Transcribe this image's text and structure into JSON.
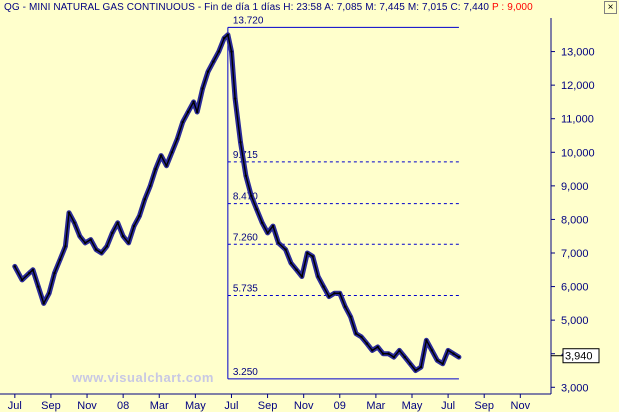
{
  "window": {
    "title": "QG - MINI NATURAL GAS CONTINUOUS - Fin de día 1 días",
    "ohlc": {
      "h_label": "H:",
      "h_value": "23:58",
      "a_label": "A:",
      "a_value": "7,085",
      "m_label": "M:",
      "m_value": "7,445",
      "m2_label": "M:",
      "m2_value": "7,015",
      "c_label": "C:",
      "c_value": "7,440",
      "p_label": "P :",
      "p_value": "9,000"
    },
    "close_label": "×"
  },
  "watermark": "www.visualchart.com",
  "colors": {
    "background": "#ffffcc",
    "axis_text": "#000080",
    "price_line": "#000000",
    "price_fill": "#2b2b99",
    "fib_line": "#0000cc"
  },
  "chart_data": {
    "type": "line",
    "title": "",
    "xlabel": "",
    "ylabel": "",
    "ylim": [
      2.8,
      14.0
    ],
    "grid": false,
    "y_ticks": [
      "13,000",
      "12,000",
      "11,000",
      "10,000",
      "9,000",
      "8,000",
      "7,000",
      "6,000",
      "5,000",
      "4,000",
      "3,000"
    ],
    "y_tick_values": [
      13,
      12,
      11,
      10,
      9,
      8,
      7,
      6,
      5,
      4,
      3
    ],
    "x_ticks": [
      "Jul",
      "Sep",
      "Nov",
      "08",
      "Mar",
      "May",
      "Jul",
      "Sep",
      "Nov",
      "09",
      "Mar",
      "May",
      "Jul",
      "Sep",
      "Nov"
    ],
    "x_tick_index": [
      0,
      2,
      4,
      6,
      8,
      10,
      12,
      14,
      16,
      18,
      20,
      22,
      24,
      26,
      28
    ],
    "x_range_months": [
      -0.6,
      29.7
    ],
    "last_value_label": "3,940",
    "last_value": 3.94,
    "series": [
      {
        "points": [
          [
            0.0,
            6.6
          ],
          [
            0.4,
            6.2
          ],
          [
            0.8,
            6.4
          ],
          [
            1.0,
            6.5
          ],
          [
            1.3,
            6.0
          ],
          [
            1.6,
            5.5
          ],
          [
            1.9,
            5.8
          ],
          [
            2.2,
            6.4
          ],
          [
            2.5,
            6.8
          ],
          [
            2.8,
            7.2
          ],
          [
            3.0,
            8.2
          ],
          [
            3.3,
            7.9
          ],
          [
            3.6,
            7.5
          ],
          [
            3.9,
            7.3
          ],
          [
            4.2,
            7.4
          ],
          [
            4.5,
            7.1
          ],
          [
            4.8,
            7.0
          ],
          [
            5.1,
            7.2
          ],
          [
            5.4,
            7.6
          ],
          [
            5.7,
            7.9
          ],
          [
            6.0,
            7.5
          ],
          [
            6.3,
            7.3
          ],
          [
            6.6,
            7.8
          ],
          [
            6.9,
            8.1
          ],
          [
            7.2,
            8.6
          ],
          [
            7.5,
            9.0
          ],
          [
            7.8,
            9.5
          ],
          [
            8.1,
            9.9
          ],
          [
            8.4,
            9.6
          ],
          [
            8.7,
            10.0
          ],
          [
            9.0,
            10.4
          ],
          [
            9.3,
            10.9
          ],
          [
            9.6,
            11.2
          ],
          [
            9.9,
            11.5
          ],
          [
            10.1,
            11.2
          ],
          [
            10.4,
            11.9
          ],
          [
            10.7,
            12.4
          ],
          [
            11.0,
            12.7
          ],
          [
            11.3,
            13.0
          ],
          [
            11.6,
            13.4
          ],
          [
            11.8,
            13.5
          ],
          [
            12.0,
            13.0
          ],
          [
            12.2,
            11.6
          ],
          [
            12.5,
            10.3
          ],
          [
            12.8,
            9.3
          ],
          [
            13.1,
            8.7
          ],
          [
            13.4,
            8.3
          ],
          [
            13.7,
            7.9
          ],
          [
            14.0,
            7.6
          ],
          [
            14.3,
            7.8
          ],
          [
            14.6,
            7.3
          ],
          [
            15.0,
            7.1
          ],
          [
            15.3,
            6.7
          ],
          [
            15.6,
            6.5
          ],
          [
            15.9,
            6.3
          ],
          [
            16.2,
            7.0
          ],
          [
            16.5,
            6.9
          ],
          [
            16.8,
            6.3
          ],
          [
            17.1,
            6.0
          ],
          [
            17.4,
            5.7
          ],
          [
            17.7,
            5.8
          ],
          [
            18.0,
            5.8
          ],
          [
            18.3,
            5.4
          ],
          [
            18.6,
            5.1
          ],
          [
            18.9,
            4.6
          ],
          [
            19.2,
            4.5
          ],
          [
            19.5,
            4.3
          ],
          [
            19.8,
            4.1
          ],
          [
            20.1,
            4.2
          ],
          [
            20.4,
            4.0
          ],
          [
            20.7,
            4.0
          ],
          [
            21.0,
            3.9
          ],
          [
            21.3,
            4.1
          ],
          [
            21.6,
            3.9
          ],
          [
            21.9,
            3.7
          ],
          [
            22.2,
            3.5
          ],
          [
            22.5,
            3.6
          ],
          [
            22.8,
            4.4
          ],
          [
            23.1,
            4.1
          ],
          [
            23.4,
            3.8
          ],
          [
            23.7,
            3.7
          ],
          [
            24.0,
            4.1
          ],
          [
            24.3,
            4.0
          ],
          [
            24.6,
            3.9
          ]
        ]
      }
    ],
    "fib_levels": [
      {
        "label": "13.720",
        "value": 13.72,
        "style": "solid"
      },
      {
        "label": "9.715",
        "value": 9.715,
        "style": "dashed"
      },
      {
        "label": "8.470",
        "value": 8.47,
        "style": "dashed"
      },
      {
        "label": "7.260",
        "value": 7.26,
        "style": "dashed"
      },
      {
        "label": "5.735",
        "value": 5.735,
        "style": "dashed"
      },
      {
        "label": "3.250",
        "value": 3.25,
        "style": "solid"
      }
    ],
    "fib_start_month": 11.8,
    "fib_end_month": 24.6
  }
}
